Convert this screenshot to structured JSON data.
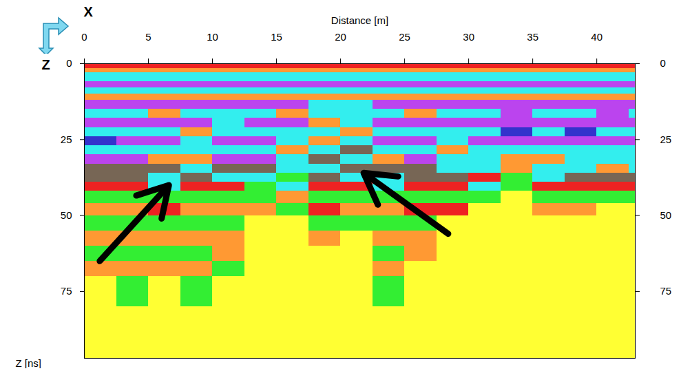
{
  "chart_data": {
    "type": "heatmap",
    "xlabel": "Distance [m]",
    "ylabel": "Z [ns]",
    "xlim": [
      0,
      43
    ],
    "ylim": [
      0,
      97
    ],
    "xticks": [
      0,
      5,
      10,
      15,
      20,
      25,
      30,
      35,
      40
    ],
    "yticks": [
      0,
      25,
      50,
      75
    ],
    "x_edges": [
      0,
      2.5,
      5,
      7.5,
      10,
      12.5,
      15,
      17.5,
      20,
      22.5,
      25,
      27.5,
      30,
      32.5,
      35,
      37.5,
      40,
      42.5,
      43
    ],
    "cells": [
      {
        "y": [
          0,
          1.5
        ],
        "colors": [
          "#e22",
          "#e22",
          "#e22",
          "#e22",
          "#e22",
          "#e22",
          "#e22",
          "#e22",
          "#e22",
          "#e22",
          "#e22",
          "#e22",
          "#e22",
          "#e22",
          "#e22",
          "#e22",
          "#e22",
          "#e22"
        ]
      },
      {
        "y": [
          1.5,
          3
        ],
        "colors": [
          "#f93",
          "#f93",
          "#f93",
          "#f93",
          "#f93",
          "#f93",
          "#f93",
          "#f93",
          "#f93",
          "#f93",
          "#f93",
          "#f93",
          "#f93",
          "#f93",
          "#f93",
          "#f93",
          "#f93",
          "#f93"
        ]
      },
      {
        "y": [
          3,
          6
        ],
        "colors": [
          "#3ee",
          "#3ee",
          "#3ee",
          "#3ee",
          "#3ee",
          "#3ee",
          "#3ee",
          "#3ee",
          "#3ee",
          "#3ee",
          "#3ee",
          "#3ee",
          "#3ee",
          "#3ee",
          "#3ee",
          "#3ee",
          "#3ee",
          "#3ee"
        ]
      },
      {
        "y": [
          6,
          8
        ],
        "colors": [
          "#b4e",
          "#b4e",
          "#b4e",
          "#b4e",
          "#b4e",
          "#b4e",
          "#b4e",
          "#b4e",
          "#b4e",
          "#b4e",
          "#b4e",
          "#b4e",
          "#b4e",
          "#b4e",
          "#b4e",
          "#b4e",
          "#b4e",
          "#b4e"
        ]
      },
      {
        "y": [
          8,
          10
        ],
        "colors": [
          "#3ee",
          "#3ee",
          "#3ee",
          "#3ee",
          "#3ee",
          "#3ee",
          "#3ee",
          "#3ee",
          "#3ee",
          "#3ee",
          "#3ee",
          "#3ee",
          "#3ee",
          "#3ee",
          "#3ee",
          "#3ee",
          "#3ee",
          "#3ee"
        ]
      },
      {
        "y": [
          10,
          12
        ],
        "colors": [
          "#f93",
          "#f93",
          "#f93",
          "#f93",
          "#f93",
          "#f93",
          "#f93",
          "#f93",
          "#f93",
          "#f93",
          "#f93",
          "#f93",
          "#f93",
          "#f93",
          "#f93",
          "#f93",
          "#f93",
          "#f93"
        ]
      },
      {
        "y": [
          12,
          15
        ],
        "colors": [
          "#b4e",
          "#b4e",
          "#b4e",
          "#b4e",
          "#b4e",
          "#b4e",
          "#b4e",
          "#3ee",
          "#3ee",
          "#b4e",
          "#b4e",
          "#b4e",
          "#b4e",
          "#b4e",
          "#b4e",
          "#b4e",
          "#b4e",
          "#b4e"
        ]
      },
      {
        "y": [
          15,
          18
        ],
        "colors": [
          "#3ee",
          "#3ee",
          "#f93",
          "#3ee",
          "#3ee",
          "#3ee",
          "#f93",
          "#3ee",
          "#3ee",
          "#3ee",
          "#f93",
          "#3ee",
          "#3ee",
          "#b4e",
          "#3ee",
          "#3ee",
          "#b4e",
          "#3ee"
        ]
      },
      {
        "y": [
          18,
          21
        ],
        "colors": [
          "#b4e",
          "#b4e",
          "#b4e",
          "#b4e",
          "#3ee",
          "#b4e",
          "#b4e",
          "#f93",
          "#3ee",
          "#b4e",
          "#b4e",
          "#b4e",
          "#b4e",
          "#b4e",
          "#b4e",
          "#b4e",
          "#b4e",
          "#b4e"
        ]
      },
      {
        "y": [
          21,
          24
        ],
        "colors": [
          "#3ee",
          "#3ee",
          "#3ee",
          "#f93",
          "#3ee",
          "#3ee",
          "#3ee",
          "#3ee",
          "#f93",
          "#3ee",
          "#3ee",
          "#3ee",
          "#3ee",
          "#33c",
          "#3ee",
          "#33c",
          "#3ee",
          "#3ee"
        ]
      },
      {
        "y": [
          24,
          27
        ],
        "colors": [
          "#33c",
          "#b4e",
          "#b4e",
          "#3ee",
          "#b4e",
          "#b4e",
          "#3ee",
          "#f93",
          "#3ee",
          "#b4e",
          "#b4e",
          "#3ee",
          "#b4e",
          "#b4e",
          "#b4e",
          "#b4e",
          "#b4e",
          "#b4e"
        ]
      },
      {
        "y": [
          27,
          30
        ],
        "colors": [
          "#3ee",
          "#3ee",
          "#3ee",
          "#3ee",
          "#3ee",
          "#3ee",
          "#f93",
          "#3ee",
          "#765",
          "#3ee",
          "#3ee",
          "#f93",
          "#3ee",
          "#3ee",
          "#3ee",
          "#3ee",
          "#3ee",
          "#3ee"
        ]
      },
      {
        "y": [
          30,
          33
        ],
        "colors": [
          "#b4e",
          "#b4e",
          "#f93",
          "#f93",
          "#b4e",
          "#b4e",
          "#3ee",
          "#765",
          "#3ee",
          "#f93",
          "#b4e",
          "#3ee",
          "#3ee",
          "#f93",
          "#f93",
          "#3ee",
          "#3ee",
          "#3ee"
        ]
      },
      {
        "y": [
          33,
          36
        ],
        "colors": [
          "#765",
          "#765",
          "#765",
          "#3ee",
          "#765",
          "#765",
          "#3ee",
          "#3ee",
          "#765",
          "#765",
          "#765",
          "#3ee",
          "#3ee",
          "#f93",
          "#3ee",
          "#3ee",
          "#f93",
          "#3ee"
        ]
      },
      {
        "y": [
          36,
          39
        ],
        "colors": [
          "#765",
          "#765",
          "#3ee",
          "#765",
          "#3ee",
          "#3ee",
          "#3e3",
          "#765",
          "#3ee",
          "#3ee",
          "#765",
          "#765",
          "#e22",
          "#3e3",
          "#3ee",
          "#765",
          "#765",
          "#765"
        ]
      },
      {
        "y": [
          39,
          42
        ],
        "colors": [
          "#e22",
          "#e22",
          "#3ee",
          "#e22",
          "#e22",
          "#3e3",
          "#3ee",
          "#e22",
          "#e22",
          "#3ee",
          "#e22",
          "#e22",
          "#3ee",
          "#3e3",
          "#e22",
          "#e22",
          "#e22",
          "#e22"
        ]
      },
      {
        "y": [
          42,
          46
        ],
        "colors": [
          "#3e3",
          "#3e3",
          "#3e3",
          "#3e3",
          "#3e3",
          "#3e3",
          "#f93",
          "#3e3",
          "#3e3",
          "#3e3",
          "#3e3",
          "#3e3",
          "#3e3",
          "#ff3",
          "#3e3",
          "#3e3",
          "#3e3",
          "#3e3"
        ]
      },
      {
        "y": [
          46,
          50
        ],
        "colors": [
          "#f93",
          "#f93",
          "#e22",
          "#f93",
          "#f93",
          "#f93",
          "#3e3",
          "#e22",
          "#f93",
          "#f93",
          "#e22",
          "#e22",
          "#ff3",
          "#ff3",
          "#f93",
          "#f93",
          "#ff3",
          "#ff3"
        ]
      },
      {
        "y": [
          50,
          55
        ],
        "colors": [
          "#3e3",
          "#3e3",
          "#3e3",
          "#3e3",
          "#3e3",
          "#ff3",
          "#ff3",
          "#3e3",
          "#3e3",
          "#3e3",
          "#3e3",
          "#ff3",
          "#ff3",
          "#ff3",
          "#ff3",
          "#ff3",
          "#ff3",
          "#ff3"
        ]
      },
      {
        "y": [
          55,
          60
        ],
        "colors": [
          "#f93",
          "#f93",
          "#f93",
          "#f93",
          "#f93",
          "#ff3",
          "#ff3",
          "#f93",
          "#ff3",
          "#f93",
          "#f93",
          "#ff3",
          "#ff3",
          "#ff3",
          "#ff3",
          "#ff3",
          "#ff3",
          "#ff3"
        ]
      },
      {
        "y": [
          60,
          65
        ],
        "colors": [
          "#3e3",
          "#3e3",
          "#3e3",
          "#3e3",
          "#f93",
          "#ff3",
          "#ff3",
          "#ff3",
          "#ff3",
          "#3e3",
          "#f93",
          "#ff3",
          "#ff3",
          "#ff3",
          "#ff3",
          "#ff3",
          "#ff3",
          "#ff3"
        ]
      },
      {
        "y": [
          65,
          70
        ],
        "colors": [
          "#f93",
          "#f93",
          "#f93",
          "#f93",
          "#3e3",
          "#ff3",
          "#ff3",
          "#ff3",
          "#ff3",
          "#f93",
          "#ff3",
          "#ff3",
          "#ff3",
          "#ff3",
          "#ff3",
          "#ff3",
          "#ff3",
          "#ff3"
        ]
      },
      {
        "y": [
          70,
          80
        ],
        "colors": [
          "#ff3",
          "#3e3",
          "#ff3",
          "#3e3",
          "#ff3",
          "#ff3",
          "#ff3",
          "#ff3",
          "#ff3",
          "#3e3",
          "#ff3",
          "#ff3",
          "#ff3",
          "#ff3",
          "#ff3",
          "#ff3",
          "#ff3",
          "#ff3"
        ]
      },
      {
        "y": [
          80,
          97
        ],
        "colors": [
          "#ff3",
          "#ff3",
          "#ff3",
          "#ff3",
          "#ff3",
          "#ff3",
          "#ff3",
          "#ff3",
          "#ff3",
          "#ff3",
          "#ff3",
          "#ff3",
          "#ff3",
          "#ff3",
          "#ff3",
          "#ff3",
          "#ff3",
          "#ff3"
        ]
      }
    ],
    "annotations": [
      {
        "text": "X",
        "x": 0.3,
        "y": -17
      },
      {
        "text": "Z",
        "x": -3,
        "y": 0.5
      }
    ],
    "arrows": [
      {
        "x1": 1.2,
        "y1": 65,
        "x2": 6.6,
        "y2": 40
      },
      {
        "x1": 28.4,
        "y1": 56,
        "x2": 21.8,
        "y2": 36
      }
    ]
  }
}
